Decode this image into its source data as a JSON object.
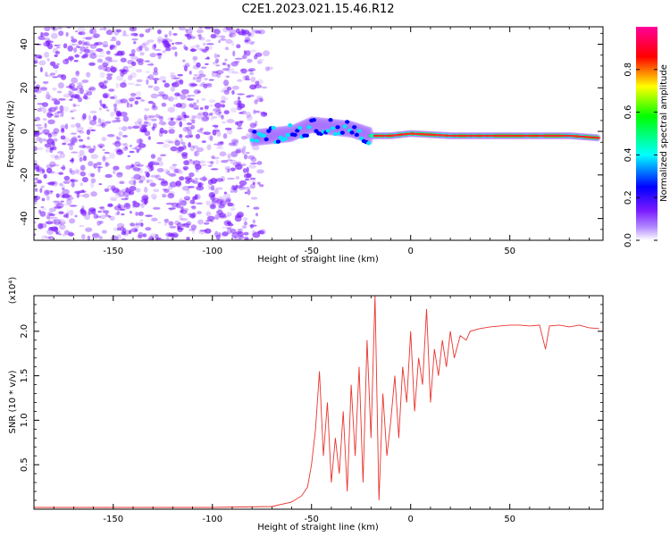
{
  "title": "C2E1.2023.021.15.46.R12",
  "colors": {
    "snr_line": "#e8342e",
    "scatter_noise": "#7a1aff",
    "signal_core": "#ff2a2a"
  },
  "chart_data": [
    {
      "type": "heatmap",
      "xlabel": "Height of straight line (km)",
      "ylabel": "Frequency (Hz)",
      "xlim": [
        -190,
        97
      ],
      "ylim": [
        -50,
        48
      ],
      "xticks": [
        -150,
        -100,
        -50,
        0,
        50
      ],
      "yticks": [
        -40,
        -20,
        0,
        20,
        40
      ],
      "colorbar": {
        "label": "Normalized spectral amplitude",
        "range": [
          0,
          1
        ],
        "ticks": [
          "0.0",
          "0.2",
          "0.4",
          "0.6",
          "0.8"
        ],
        "colormap": [
          "#ffffff",
          "#8a2be2",
          "#0000ff",
          "#00ffff",
          "#00ff00",
          "#ffff00",
          "#ff0000",
          "#ff00cc"
        ]
      },
      "signal_track": {
        "x": [
          -80,
          -60,
          -50,
          -40,
          -30,
          -20,
          -10,
          0,
          20,
          40,
          60,
          80,
          95
        ],
        "freq": [
          -3,
          -1,
          3,
          2,
          1,
          -2,
          -2,
          -1,
          -2,
          -2,
          -2,
          -2,
          -3
        ]
      },
      "noise_region_x": [
        -190,
        -70
      ]
    },
    {
      "type": "line",
      "xlabel": "Height of straight line (km)",
      "ylabel": "SNR (10 * v/v)",
      "yscale_label": "(x10⁴)",
      "xlim": [
        -190,
        97
      ],
      "ylim": [
        0,
        24000
      ],
      "xticks": [
        -150,
        -100,
        -50,
        0,
        50
      ],
      "yticks": [
        "0.5",
        "1.0",
        "1.5",
        "2.0"
      ],
      "series": [
        {
          "x": [
            -190,
            -100,
            -70,
            -60,
            -55,
            -52,
            -50,
            -48,
            -46,
            -44,
            -42,
            -40,
            -38,
            -36,
            -34,
            -32,
            -30,
            -28,
            -26,
            -24,
            -22,
            -20,
            -18,
            -16,
            -14,
            -12,
            -10,
            -8,
            -6,
            -4,
            -2,
            0,
            2,
            4,
            6,
            8,
            10,
            12,
            14,
            16,
            18,
            20,
            22,
            25,
            28,
            30,
            35,
            40,
            45,
            50,
            55,
            60,
            65,
            68,
            70,
            75,
            80,
            85,
            90,
            95
          ],
          "y": [
            200,
            200,
            300,
            800,
            1500,
            2500,
            5000,
            9000,
            15500,
            6000,
            12000,
            3000,
            8000,
            4000,
            11000,
            2000,
            14000,
            6000,
            16000,
            3000,
            19000,
            8000,
            24000,
            1000,
            13000,
            6000,
            10000,
            15000,
            8000,
            16000,
            12000,
            20000,
            11000,
            17000,
            14000,
            22500,
            12000,
            18000,
            15000,
            19000,
            16000,
            20000,
            17000,
            19500,
            19000,
            20000,
            20300,
            20500,
            20600,
            20700,
            20700,
            20600,
            20700,
            18000,
            20600,
            20700,
            20500,
            20700,
            20400,
            20300
          ]
        }
      ]
    }
  ]
}
